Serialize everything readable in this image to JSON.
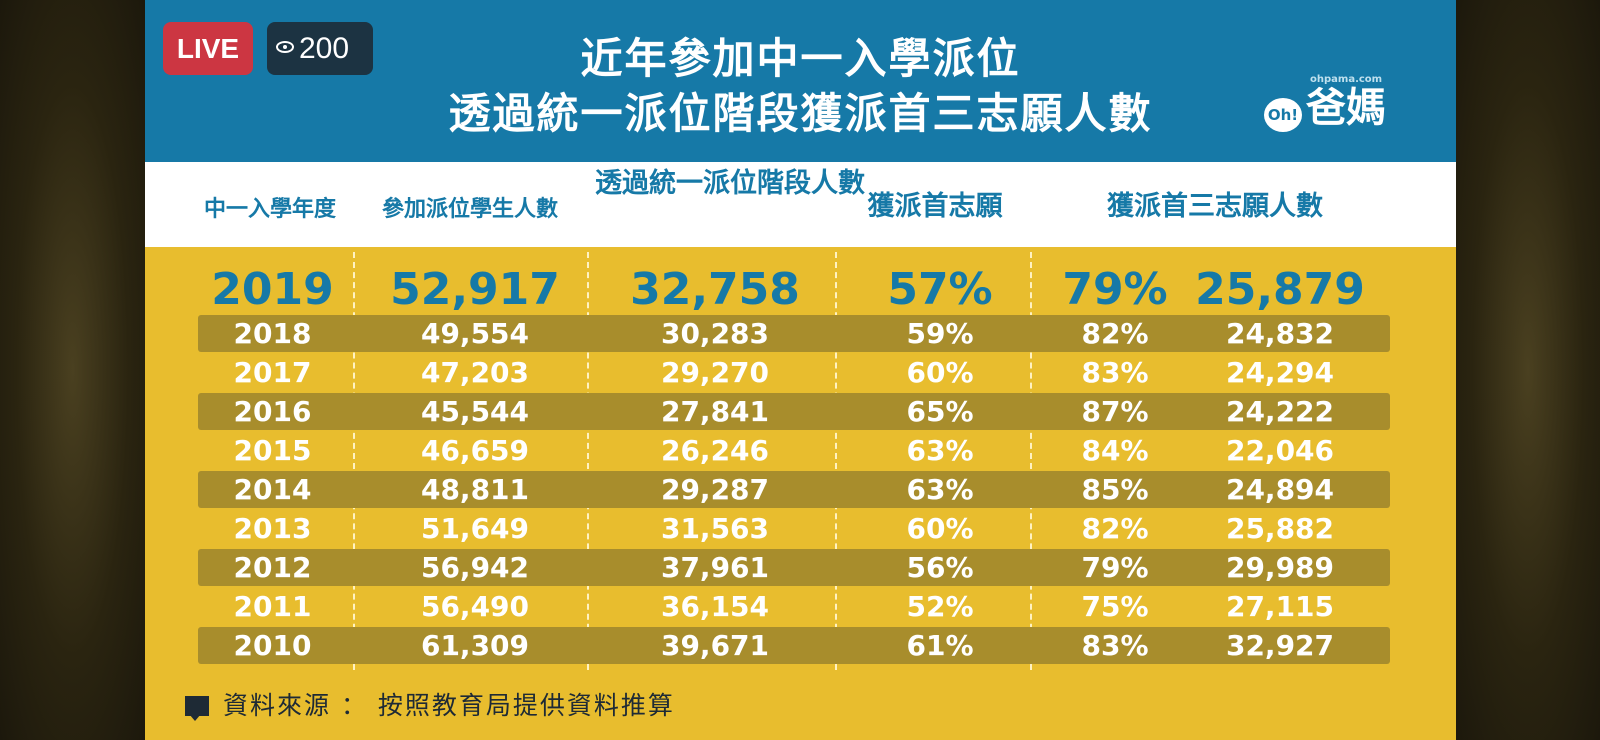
{
  "stream": {
    "live_label": "LIVE",
    "viewer_count": "200",
    "viewer_icon": "eye-icon"
  },
  "slide": {
    "title_line1": "近年參加中一入學派位",
    "title_line2": "透過統一派位階段獲派首三志願人數",
    "logo": {
      "prefix": "Oh!",
      "text": "爸媽",
      "url": "ohpama.com"
    },
    "colors": {
      "banner": "#1679a7",
      "body": "#e8bd2e",
      "row_stripe": "#a88d2c",
      "highlight_text": "#1679a7",
      "row_text": "#ffffff"
    },
    "headers": {
      "year": "中一入學年度",
      "students": "參加派位學生人數",
      "central": "透過統一派位階段人數",
      "first_choice": "獲派首志願",
      "top3": "獲派首三志願人數"
    },
    "highlight_row": {
      "year": "2019",
      "students": "52,917",
      "central": "32,758",
      "first_pct": "57%",
      "top3_pct": "79%",
      "top3_count": "25,879"
    },
    "rows": [
      {
        "year": "2018",
        "students": "49,554",
        "central": "30,283",
        "first_pct": "59%",
        "top3_pct": "82%",
        "top3_count": "24,832"
      },
      {
        "year": "2017",
        "students": "47,203",
        "central": "29,270",
        "first_pct": "60%",
        "top3_pct": "83%",
        "top3_count": "24,294"
      },
      {
        "year": "2016",
        "students": "45,544",
        "central": "27,841",
        "first_pct": "65%",
        "top3_pct": "87%",
        "top3_count": "24,222"
      },
      {
        "year": "2015",
        "students": "46,659",
        "central": "26,246",
        "first_pct": "63%",
        "top3_pct": "84%",
        "top3_count": "22,046"
      },
      {
        "year": "2014",
        "students": "48,811",
        "central": "29,287",
        "first_pct": "63%",
        "top3_pct": "85%",
        "top3_count": "24,894"
      },
      {
        "year": "2013",
        "students": "51,649",
        "central": "31,563",
        "first_pct": "60%",
        "top3_pct": "82%",
        "top3_count": "25,882"
      },
      {
        "year": "2012",
        "students": "56,942",
        "central": "37,961",
        "first_pct": "56%",
        "top3_pct": "79%",
        "top3_count": "29,989"
      },
      {
        "year": "2011",
        "students": "56,490",
        "central": "36,154",
        "first_pct": "52%",
        "top3_pct": "75%",
        "top3_count": "27,115"
      },
      {
        "year": "2010",
        "students": "61,309",
        "central": "39,671",
        "first_pct": "61%",
        "top3_pct": "83%",
        "top3_count": "32,927"
      }
    ],
    "footer": {
      "icon": "comment-icon",
      "text": "資料來源 ： 按照教育局提供資料推算"
    }
  }
}
